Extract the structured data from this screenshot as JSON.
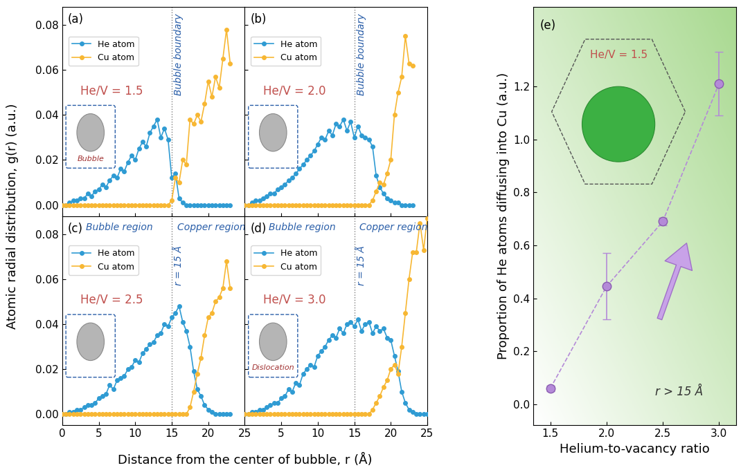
{
  "xlabel": "Distance from the center of bubble, r (Å)",
  "ylabel": "Atomic radial distribution, g(r) (a.u.)",
  "chart_data": [
    {
      "type": "line",
      "label": "(a)",
      "annotation": "He/V = 1.5",
      "line_label": "Bubble boundary",
      "vline": 15,
      "inset_label": "Bubble",
      "x": [
        0,
        0.5,
        1,
        1.5,
        2,
        2.5,
        3,
        3.5,
        4,
        4.5,
        5,
        5.5,
        6,
        6.5,
        7,
        7.5,
        8,
        8.5,
        9,
        9.5,
        10,
        10.5,
        11,
        11.5,
        12,
        12.5,
        13,
        13.5,
        14,
        14.5,
        15,
        15.5,
        16,
        16.5,
        17,
        17.5,
        18,
        18.5,
        19,
        19.5,
        20,
        20.5,
        21,
        21.5,
        22,
        22.5,
        23
      ],
      "series": [
        {
          "name": "He atom",
          "color": "#2f9bd3",
          "marker": "o",
          "values": [
            0,
            0,
            0.001,
            0.002,
            0.002,
            0.003,
            0.003,
            0.005,
            0.004,
            0.006,
            0.007,
            0.009,
            0.008,
            0.011,
            0.013,
            0.012,
            0.016,
            0.015,
            0.019,
            0.022,
            0.02,
            0.025,
            0.028,
            0.026,
            0.032,
            0.035,
            0.038,
            0.03,
            0.034,
            0.029,
            0.012,
            0.014,
            0.003,
            0.001,
            0,
            0,
            0,
            0,
            0,
            0,
            0,
            0,
            0,
            0,
            0,
            0,
            0
          ]
        },
        {
          "name": "Cu atom",
          "color": "#f7b733",
          "marker": "o",
          "values": [
            0,
            0,
            0,
            0,
            0,
            0,
            0,
            0,
            0,
            0,
            0,
            0,
            0,
            0,
            0,
            0,
            0,
            0,
            0,
            0,
            0,
            0,
            0,
            0,
            0,
            0,
            0,
            0,
            0,
            0,
            0.002,
            0.012,
            0.01,
            0.02,
            0.018,
            0.038,
            0.036,
            0.04,
            0.037,
            0.045,
            0.055,
            0.048,
            0.057,
            0.052,
            0.065,
            0.078,
            0.063
          ]
        }
      ],
      "xlim": [
        0,
        25
      ],
      "ylim": [
        -0.005,
        0.088
      ],
      "xticks": [
        0,
        5,
        10,
        15,
        20,
        25
      ],
      "yticks": [
        {
          "value": 0,
          "label": "0.00"
        },
        0.02,
        0.04,
        0.06,
        0.08
      ],
      "legend": "upper left",
      "tick_labels": "y"
    },
    {
      "type": "line",
      "label": "(b)",
      "annotation": "He/V = 2.0",
      "line_label": "Bubble boundary",
      "vline": 15,
      "x": [
        0,
        0.5,
        1,
        1.5,
        2,
        2.5,
        3,
        3.5,
        4,
        4.5,
        5,
        5.5,
        6,
        6.5,
        7,
        7.5,
        8,
        8.5,
        9,
        9.5,
        10,
        10.5,
        11,
        11.5,
        12,
        12.5,
        13,
        13.5,
        14,
        14.5,
        15,
        15.5,
        16,
        16.5,
        17,
        17.5,
        18,
        18.5,
        19,
        19.5,
        20,
        20.5,
        21,
        21.5,
        22,
        22.5,
        23
      ],
      "series": [
        {
          "name": "He atom",
          "color": "#2f9bd3",
          "marker": "o",
          "values": [
            0,
            0,
            0.001,
            0.002,
            0.002,
            0.003,
            0.004,
            0.005,
            0.005,
            0.007,
            0.008,
            0.009,
            0.011,
            0.012,
            0.014,
            0.016,
            0.018,
            0.02,
            0.022,
            0.024,
            0.027,
            0.03,
            0.029,
            0.033,
            0.031,
            0.036,
            0.035,
            0.038,
            0.033,
            0.037,
            0.03,
            0.035,
            0.031,
            0.03,
            0.029,
            0.026,
            0.013,
            0.008,
            0.005,
            0.003,
            0.002,
            0.001,
            0.001,
            0,
            0,
            0,
            0
          ]
        },
        {
          "name": "Cu atom",
          "color": "#f7b733",
          "marker": "o",
          "values": [
            0,
            0,
            0,
            0,
            0,
            0,
            0,
            0,
            0,
            0,
            0,
            0,
            0,
            0,
            0,
            0,
            0,
            0,
            0,
            0,
            0,
            0,
            0,
            0,
            0,
            0,
            0,
            0,
            0,
            0,
            0,
            0,
            0,
            0,
            0,
            0.002,
            0.006,
            0.01,
            0.009,
            0.014,
            0.02,
            0.04,
            0.05,
            0.057,
            0.075,
            0.063,
            0.062
          ]
        }
      ],
      "xlim": [
        0,
        25
      ],
      "ylim": [
        -0.005,
        0.088
      ],
      "xticks": [
        0,
        5,
        10,
        15,
        20,
        25
      ],
      "yticks": [
        {
          "value": 0,
          "label": "0.00"
        },
        0.02,
        0.04,
        0.06,
        0.08
      ],
      "legend": "upper left",
      "tick_labels": false
    },
    {
      "type": "line",
      "label": "(c)",
      "annotation": "He/V = 2.5",
      "line_label": "r = 15 Å",
      "vline": 15,
      "region_labels": [
        "Bubble region",
        "Copper region"
      ],
      "x": [
        0,
        0.5,
        1,
        1.5,
        2,
        2.5,
        3,
        3.5,
        4,
        4.5,
        5,
        5.5,
        6,
        6.5,
        7,
        7.5,
        8,
        8.5,
        9,
        9.5,
        10,
        10.5,
        11,
        11.5,
        12,
        12.5,
        13,
        13.5,
        14,
        14.5,
        15,
        15.5,
        16,
        16.5,
        17,
        17.5,
        18,
        18.5,
        19,
        19.5,
        20,
        20.5,
        21,
        21.5,
        22,
        22.5,
        23
      ],
      "series": [
        {
          "name": "He atom",
          "color": "#2f9bd3",
          "marker": "o",
          "values": [
            0,
            0,
            0.001,
            0.001,
            0.002,
            0.002,
            0.003,
            0.004,
            0.004,
            0.005,
            0.007,
            0.008,
            0.009,
            0.013,
            0.011,
            0.015,
            0.016,
            0.017,
            0.02,
            0.021,
            0.024,
            0.023,
            0.027,
            0.029,
            0.031,
            0.032,
            0.035,
            0.036,
            0.04,
            0.039,
            0.043,
            0.045,
            0.048,
            0.041,
            0.037,
            0.03,
            0.019,
            0.011,
            0.008,
            0.004,
            0.002,
            0.001,
            0,
            0,
            0,
            0,
            0
          ]
        },
        {
          "name": "Cu atom",
          "color": "#f7b733",
          "marker": "o",
          "values": [
            0,
            0,
            0,
            0,
            0,
            0,
            0,
            0,
            0,
            0,
            0,
            0,
            0,
            0,
            0,
            0,
            0,
            0,
            0,
            0,
            0,
            0,
            0,
            0,
            0,
            0,
            0,
            0,
            0,
            0,
            0,
            0,
            0,
            0,
            0,
            0.003,
            0.01,
            0.018,
            0.025,
            0.035,
            0.043,
            0.045,
            0.05,
            0.052,
            0.056,
            0.068,
            0.056
          ]
        }
      ],
      "xlim": [
        0,
        25
      ],
      "ylim": [
        -0.005,
        0.088
      ],
      "xticks": [
        0,
        5,
        10,
        15,
        20,
        25
      ],
      "yticks": [
        {
          "value": 0,
          "label": "0.00"
        },
        0.02,
        0.04,
        0.06,
        0.08
      ],
      "legend": "upper left"
    },
    {
      "type": "line",
      "label": "(d)",
      "annotation": "He/V = 3.0",
      "line_label": "r = 15 Å",
      "vline": 15,
      "inset_label": "Dislocation",
      "region_labels": [
        "Bubble region",
        "Copper region"
      ],
      "x": [
        0,
        0.5,
        1,
        1.5,
        2,
        2.5,
        3,
        3.5,
        4,
        4.5,
        5,
        5.5,
        6,
        6.5,
        7,
        7.5,
        8,
        8.5,
        9,
        9.5,
        10,
        10.5,
        11,
        11.5,
        12,
        12.5,
        13,
        13.5,
        14,
        14.5,
        15,
        15.5,
        16,
        16.5,
        17,
        17.5,
        18,
        18.5,
        19,
        19.5,
        20,
        20.5,
        21,
        21.5,
        22,
        22.5,
        23,
        23.5,
        24,
        24.5,
        25
      ],
      "series": [
        {
          "name": "He atom",
          "color": "#2f9bd3",
          "marker": "o",
          "values": [
            0,
            0,
            0.001,
            0.001,
            0.002,
            0.002,
            0.003,
            0.004,
            0.005,
            0.005,
            0.007,
            0.008,
            0.011,
            0.01,
            0.014,
            0.013,
            0.018,
            0.02,
            0.022,
            0.021,
            0.026,
            0.028,
            0.03,
            0.033,
            0.035,
            0.034,
            0.038,
            0.036,
            0.04,
            0.041,
            0.039,
            0.042,
            0.037,
            0.04,
            0.041,
            0.036,
            0.039,
            0.037,
            0.038,
            0.034,
            0.033,
            0.026,
            0.019,
            0.01,
            0.005,
            0.002,
            0.001,
            0,
            0,
            0,
            0
          ]
        },
        {
          "name": "Cu atom",
          "color": "#f7b733",
          "marker": "o",
          "values": [
            0,
            0,
            0,
            0,
            0,
            0,
            0,
            0,
            0,
            0,
            0,
            0,
            0,
            0,
            0,
            0,
            0,
            0,
            0,
            0,
            0,
            0,
            0,
            0,
            0,
            0,
            0,
            0,
            0,
            0,
            0,
            0,
            0,
            0,
            0,
            0.002,
            0.005,
            0.008,
            0.012,
            0.015,
            0.02,
            0.022,
            0.018,
            0.03,
            0.045,
            0.06,
            0.072,
            0.072,
            0.085,
            0.073,
            0.087
          ]
        }
      ],
      "xlim": [
        0,
        25
      ],
      "ylim": [
        -0.005,
        0.088
      ],
      "xticks": [
        5,
        10,
        15,
        20,
        25
      ],
      "yticks": [
        {
          "value": 0,
          "label": "0.00"
        },
        0.02,
        0.04,
        0.06,
        0.08
      ],
      "legend": "upper left",
      "tick_labels": "x"
    },
    {
      "type": "scatter",
      "label": "(e)",
      "annotation": "r > 15 Å",
      "inset_label": "He/V = 1.5",
      "xlabel": "Helium-to-vacancy ratio",
      "ylabel": "Proportion of He atoms diffusing into Cu (a.u.)",
      "x": [
        1.5,
        2.0,
        2.5,
        3.0
      ],
      "values": [
        0.06,
        0.445,
        0.69,
        1.21
      ],
      "errors": [
        0.01,
        0.125,
        0.015,
        0.12
      ],
      "color": "#b48ad8",
      "marker": "o",
      "line_style": "dashed",
      "xlim": [
        1.35,
        3.15
      ],
      "ylim": [
        -0.08,
        1.5
      ],
      "xticks": [
        1.5,
        2.0,
        2.5,
        3.0
      ],
      "yticks": [
        0.0,
        0.2,
        0.4,
        0.6,
        0.8,
        1.0,
        1.2
      ]
    }
  ]
}
